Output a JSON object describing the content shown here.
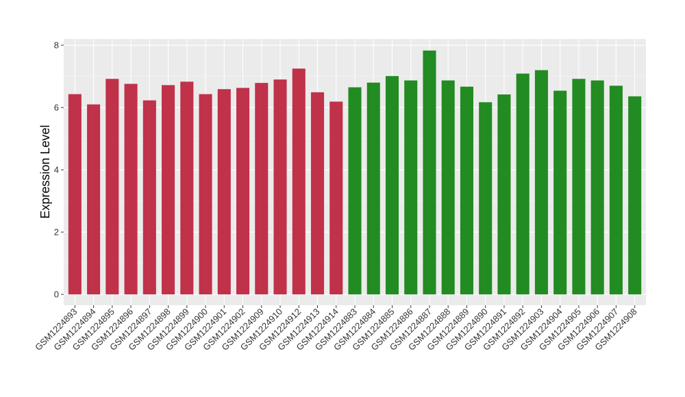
{
  "chart_data": {
    "type": "bar",
    "title": "",
    "xlabel": "",
    "ylabel": "Expression Level",
    "ylim": [
      -0.35,
      8.2
    ],
    "yticks": [
      0,
      2,
      4,
      6,
      8
    ],
    "grid": true,
    "background": "#ebebeb",
    "categories": [
      "GSM1224893",
      "GSM1224894",
      "GSM1224895",
      "GSM1224896",
      "GSM1224897",
      "GSM1224898",
      "GSM1224899",
      "GSM1224900",
      "GSM1224901",
      "GSM1224902",
      "GSM1224909",
      "GSM1224910",
      "GSM1224912",
      "GSM1224913",
      "GSM1224914",
      "GSM1224883",
      "GSM1224884",
      "GSM1224885",
      "GSM1224886",
      "GSM1224887",
      "GSM1224888",
      "GSM1224889",
      "GSM1224890",
      "GSM1224891",
      "GSM1224892",
      "GSM1224903",
      "GSM1224904",
      "GSM1224905",
      "GSM1224906",
      "GSM1224907",
      "GSM1224908"
    ],
    "values": [
      6.43,
      6.1,
      6.92,
      6.76,
      6.23,
      6.72,
      6.83,
      6.43,
      6.59,
      6.63,
      6.79,
      6.9,
      7.25,
      6.49,
      6.19,
      6.65,
      6.8,
      7.01,
      6.87,
      7.83,
      6.87,
      6.67,
      6.17,
      6.42,
      7.09,
      7.2,
      6.54,
      6.92,
      6.87,
      6.7,
      6.36
    ],
    "groups": [
      0,
      0,
      0,
      0,
      0,
      0,
      0,
      0,
      0,
      0,
      0,
      0,
      0,
      0,
      0,
      1,
      1,
      1,
      1,
      1,
      1,
      1,
      1,
      1,
      1,
      1,
      1,
      1,
      1,
      1,
      1
    ],
    "colors": [
      "#c0314a",
      "#228b22"
    ]
  }
}
